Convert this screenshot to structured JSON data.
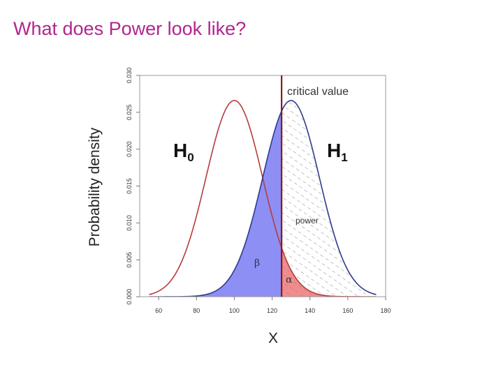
{
  "slide": {
    "title": "What does Power look like?"
  },
  "colors": {
    "title": "#b0268f",
    "h0_curve": "#b83b3b",
    "h1_curve": "#2e3a8c",
    "beta_fill": "#8d8ff5",
    "alpha_fill": "#f08c8c",
    "critical_line": "#8b1a1a",
    "hatch": "#8a8a8a"
  },
  "chart_data": {
    "type": "area",
    "xlabel": "X",
    "ylabel": "Probability density",
    "xlim": [
      50,
      180
    ],
    "ylim": [
      0,
      0.03
    ],
    "x_ticks": [
      "60",
      "80",
      "100",
      "120",
      "140",
      "160",
      "180"
    ],
    "y_ticks": [
      "0.000",
      "0.005",
      "0.010",
      "0.015",
      "0.020",
      "0.025",
      "0.030"
    ],
    "series": [
      {
        "name": "H0",
        "distribution": "normal",
        "mean": 100,
        "sd": 15
      },
      {
        "name": "H1",
        "distribution": "normal",
        "mean": 130,
        "sd": 15
      }
    ],
    "critical_value": 125,
    "annotations": {
      "critical_value_label": "critical value",
      "h0_label": "H",
      "h0_sub": "0",
      "h1_label": "H",
      "h1_sub": "1",
      "beta": "β",
      "alpha": "α",
      "power": "power"
    }
  }
}
